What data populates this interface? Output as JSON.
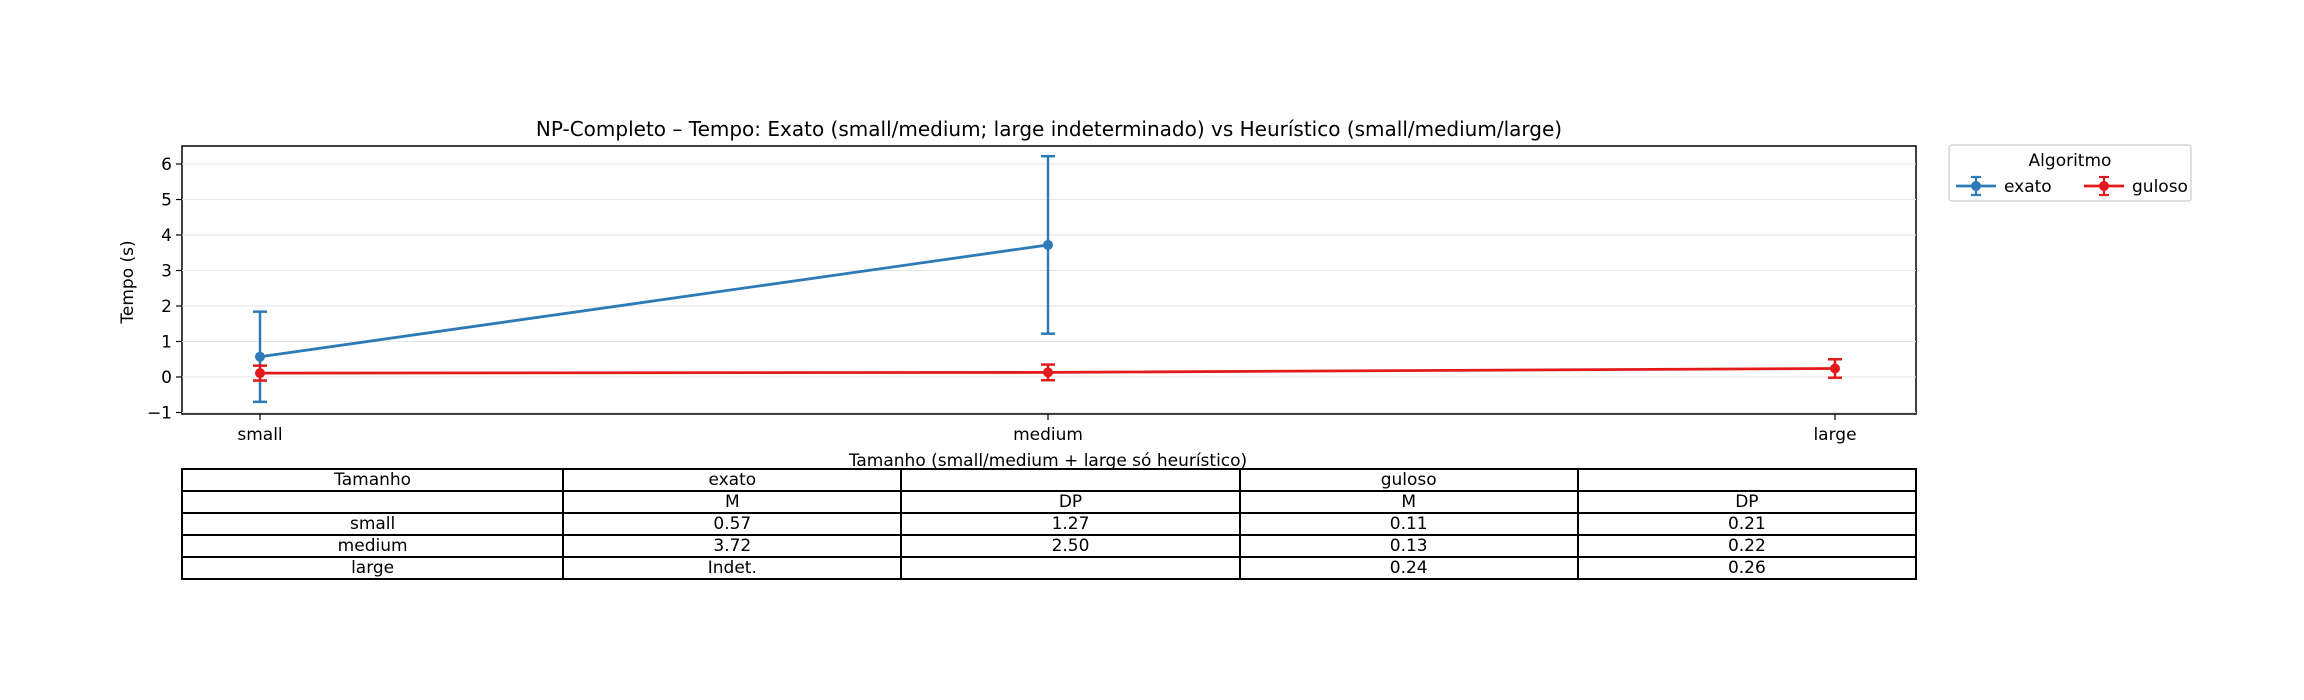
{
  "chart_data": {
    "type": "line",
    "title": "NP-Completo – Tempo: Exato (small/medium; large indeterminado) vs Heurístico (small/medium/large)",
    "xlabel": "Tamanho (small/medium + large só heurístico)",
    "ylabel": "Tempo (s)",
    "categories": [
      "small",
      "medium",
      "large"
    ],
    "ylim": [
      -1,
      6.5
    ],
    "yticks": [
      -1,
      0,
      1,
      2,
      3,
      4,
      5,
      6
    ],
    "ytick_labels": [
      "−1",
      "0",
      "1",
      "2",
      "3",
      "4",
      "5",
      "6"
    ],
    "grid": "y",
    "legend": {
      "title": "Algoritmo",
      "placement": "outside-top-right",
      "columns": 2
    },
    "series": [
      {
        "name": "exato",
        "color": "#2c7bb6",
        "marker": "circle",
        "values": [
          0.57,
          3.72,
          null
        ],
        "error": [
          1.27,
          2.5,
          null
        ]
      },
      {
        "name": "guloso",
        "color": "#e31a1c",
        "marker": "circle",
        "values": [
          0.11,
          0.13,
          0.24
        ],
        "error": [
          0.21,
          0.22,
          0.26
        ]
      }
    ]
  },
  "table": {
    "rows": [
      [
        "Tamanho",
        "exato",
        "",
        "guloso",
        ""
      ],
      [
        "",
        "M",
        "DP",
        "M",
        "DP"
      ],
      [
        "small",
        "0.57",
        "1.27",
        "0.11",
        "0.21"
      ],
      [
        "medium",
        "3.72",
        "2.50",
        "0.13",
        "0.22"
      ],
      [
        "large",
        "Indet.",
        "",
        "0.24",
        "0.26"
      ]
    ]
  }
}
